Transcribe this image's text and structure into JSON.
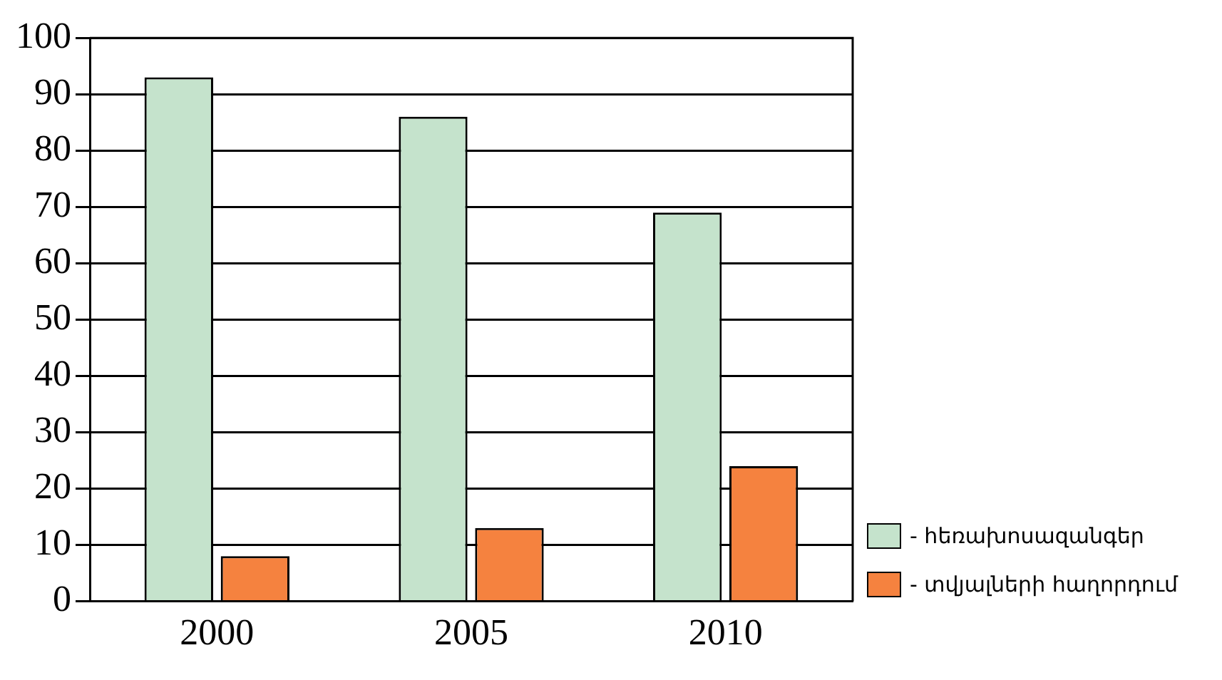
{
  "chart_data": {
    "type": "bar",
    "categories": [
      "2000",
      "2005",
      "2010"
    ],
    "series": [
      {
        "name": "- հեռախոսազանգեր",
        "color": "#c5e3cc",
        "values": [
          93,
          86,
          69
        ]
      },
      {
        "name": "- տվյալների հաղորդում",
        "color": "#f5823f",
        "values": [
          8,
          13,
          24
        ]
      }
    ],
    "ylim": [
      0,
      100
    ],
    "yticks": [
      0,
      10,
      20,
      30,
      40,
      50,
      60,
      70,
      80,
      90,
      100
    ],
    "grid": "y",
    "legend": "right"
  }
}
